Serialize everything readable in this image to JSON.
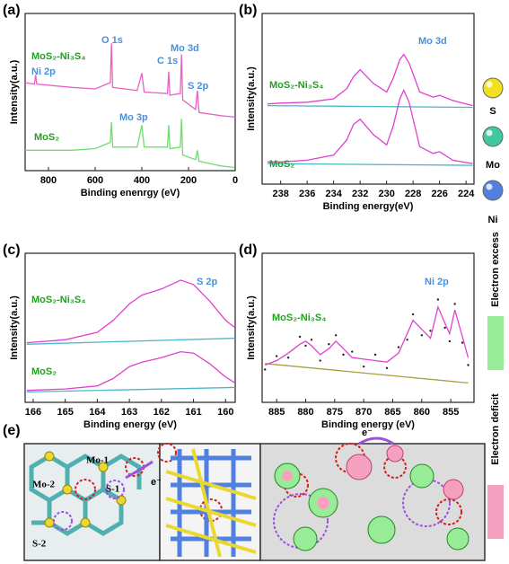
{
  "chart_data": [
    {
      "type": "line",
      "label": "(a)",
      "xlabel": "Binding enenrgy (eV)",
      "ylabel": "Intensity(a.u.)",
      "xlim": [
        900,
        0
      ],
      "xticks": [
        800,
        600,
        400,
        200,
        0
      ],
      "ylim": [
        0,
        10
      ],
      "annotations": [
        {
          "text": "MoS₂-Ni₃S₄",
          "color": "#22a022"
        },
        {
          "text": "Ni 2p",
          "color": "#4a90d9"
        },
        {
          "text": "O 1s",
          "color": "#4a90d9"
        },
        {
          "text": "C 1s",
          "color": "#4a90d9"
        },
        {
          "text": "Mo 3d",
          "color": "#4a90d9"
        },
        {
          "text": "S 2p",
          "color": "#4a90d9"
        },
        {
          "text": "Mo 3p",
          "color": "#4a90d9"
        },
        {
          "text": "MoS₂",
          "color": "#22a022"
        }
      ],
      "series": [
        {
          "color": "#e860c8",
          "x": [
            900,
            860,
            855,
            850,
            700,
            600,
            535,
            530,
            525,
            420,
            400,
            390,
            290,
            285,
            280,
            235,
            230,
            225,
            170,
            162,
            155,
            60,
            0
          ],
          "values": [
            5.6,
            5.5,
            6.1,
            5.5,
            5.3,
            5.2,
            5.6,
            8.1,
            5.3,
            5.1,
            6.2,
            5.0,
            4.9,
            6.3,
            4.8,
            4.9,
            7.4,
            4.5,
            3.9,
            5.1,
            3.7,
            3.5,
            3.4
          ]
        },
        {
          "color": "#70dc70",
          "x": [
            900,
            860,
            855,
            850,
            700,
            600,
            535,
            530,
            525,
            420,
            400,
            390,
            290,
            285,
            280,
            235,
            230,
            225,
            170,
            162,
            155,
            60,
            0
          ],
          "values": [
            1.3,
            1.3,
            1.3,
            1.3,
            1.3,
            1.4,
            1.8,
            3.1,
            1.5,
            1.5,
            2.9,
            1.5,
            1.5,
            2.9,
            1.4,
            1.5,
            3.3,
            1.0,
            0.7,
            1.3,
            0.6,
            0.3,
            0.2
          ]
        }
      ]
    },
    {
      "type": "line",
      "label": "(b)",
      "xlabel": "Binding energy(eV)",
      "ylabel": "Intensity(a.u.)",
      "xlim": [
        239.4,
        223.4
      ],
      "xticks": [
        238,
        236,
        234,
        232,
        230,
        228,
        226,
        224
      ],
      "ylim": [
        0,
        10
      ],
      "annotations": [
        {
          "text": "Mo 3d",
          "color": "#4a90d9"
        },
        {
          "text": "MoS₂-Ni₃S₄",
          "color": "#22a022"
        },
        {
          "text": "MoS₂",
          "color": "#22a022"
        }
      ],
      "series": [
        {
          "color": "#4ab8c8",
          "x": [
            239,
            223.5
          ],
          "values": [
            4.6,
            4.5
          ]
        },
        {
          "color": "#4ab8c8",
          "x": [
            239,
            223.5
          ],
          "values": [
            1.2,
            1.1
          ]
        },
        {
          "color": "#e040d0",
          "x": [
            239,
            238,
            236,
            234,
            233,
            232.5,
            232,
            231,
            230,
            229.5,
            229,
            228.7,
            228.3,
            227.5,
            226.5,
            226,
            225,
            223.5
          ],
          "values": [
            4.7,
            4.75,
            4.8,
            5.0,
            5.6,
            6.3,
            6.7,
            5.9,
            5.4,
            6.2,
            7.3,
            7.6,
            7.1,
            5.4,
            5.1,
            5.2,
            4.9,
            4.6
          ]
        },
        {
          "color": "#e040d0",
          "x": [
            239,
            238,
            236,
            234,
            233,
            232.5,
            232,
            231,
            230,
            229.5,
            229,
            228.7,
            228.3,
            227.5,
            226.5,
            226,
            225,
            223.5
          ],
          "values": [
            1.3,
            1.3,
            1.4,
            1.7,
            2.6,
            3.5,
            3.8,
            2.9,
            2.3,
            3.4,
            5.0,
            5.5,
            4.8,
            2.2,
            1.8,
            1.9,
            1.4,
            1.2
          ]
        }
      ]
    },
    {
      "type": "line",
      "label": "(c)",
      "xlabel": "Binding energy (eV)",
      "ylabel": "Intensity(a.u.)",
      "xlim": [
        166.25,
        159.7
      ],
      "xticks": [
        166,
        165,
        164,
        163,
        162,
        161,
        160
      ],
      "ylim": [
        0,
        10
      ],
      "annotations": [
        {
          "text": "S 2p",
          "color": "#4a90d9"
        },
        {
          "text": "MoS₂-Ni₃S₄",
          "color": "#22a022"
        },
        {
          "text": "MoS₂",
          "color": "#22a022"
        }
      ],
      "series": [
        {
          "color": "#4ab8c8",
          "x": [
            166.2,
            159.7
          ],
          "values": [
            3.9,
            4.3
          ]
        },
        {
          "color": "#4ab8c8",
          "x": [
            166.2,
            159.7
          ],
          "values": [
            0.7,
            1.0
          ]
        },
        {
          "color": "#e040d0",
          "x": [
            166.2,
            165,
            164,
            163.5,
            163,
            162.6,
            162,
            161.4,
            161,
            160.5,
            160,
            159.7
          ],
          "values": [
            4.0,
            4.2,
            4.7,
            5.5,
            6.6,
            7.2,
            7.6,
            8.2,
            7.9,
            6.8,
            5.5,
            5.0
          ]
        },
        {
          "color": "#e040d0",
          "x": [
            166.2,
            165,
            164,
            163.5,
            163,
            162.6,
            162,
            161.4,
            161,
            160.5,
            160,
            159.7
          ],
          "values": [
            0.8,
            0.9,
            1.1,
            1.6,
            2.4,
            2.7,
            3.0,
            3.4,
            3.3,
            2.6,
            1.7,
            1.3
          ]
        }
      ]
    },
    {
      "type": "line",
      "label": "(d)",
      "xlabel": "Binding energy (eV)",
      "ylabel": "Intensity(a.u.)",
      "xlim": [
        887.5,
        851
      ],
      "xticks": [
        885,
        880,
        875,
        870,
        865,
        860,
        855
      ],
      "ylim": [
        0,
        10
      ],
      "annotations": [
        {
          "text": "Ni 2p",
          "color": "#4a90d9"
        },
        {
          "text": "MoS₂-Ni₃S₄",
          "color": "#22a022"
        }
      ],
      "series": [
        {
          "color": "#a8a040",
          "x": [
            887,
            852
          ],
          "values": [
            2.6,
            1.3
          ]
        },
        {
          "color": "#222222",
          "marker": "dot",
          "x": [
            887,
            885,
            883,
            881,
            880,
            879,
            877.5,
            876,
            874.8,
            873.5,
            872,
            870,
            868,
            866,
            864,
            862.5,
            861.5,
            860,
            858.5,
            857.2,
            856,
            855.2,
            854.3,
            853,
            852
          ],
          "values": [
            2.2,
            3.1,
            3.0,
            4.4,
            3.8,
            4.2,
            2.8,
            3.9,
            4.5,
            3.2,
            3.4,
            2.4,
            3.2,
            2.3,
            3.7,
            4.2,
            5.9,
            4.5,
            4.8,
            6.9,
            5.0,
            4.1,
            6.6,
            4.0,
            2.5
          ]
        },
        {
          "color": "#e040d0",
          "x": [
            887,
            885,
            883,
            881,
            880,
            879,
            877.5,
            876,
            874.8,
            873.5,
            872,
            870,
            868,
            866,
            864,
            862.5,
            861.5,
            860,
            858.5,
            857.2,
            856,
            855.2,
            854.3,
            853,
            852
          ],
          "values": [
            2.5,
            2.8,
            3.3,
            3.9,
            4.1,
            3.8,
            3.2,
            3.6,
            4.1,
            3.6,
            3.0,
            2.9,
            2.8,
            2.7,
            3.3,
            4.6,
            5.5,
            4.9,
            4.3,
            6.4,
            5.3,
            4.6,
            6.2,
            4.4,
            3.0
          ]
        }
      ]
    }
  ],
  "atom_legend": [
    {
      "label": "S",
      "color": "#f0e020"
    },
    {
      "label": "Mo",
      "color": "#40c8a0"
    },
    {
      "label": "Ni",
      "color": "#5080e0"
    }
  ],
  "colorbar": [
    {
      "label": "Electron excess",
      "color": "#98ec98"
    },
    {
      "label": "Electron deficit",
      "color": "#f6a0c0"
    }
  ],
  "panel_e": {
    "label": "(e)",
    "atom_labels": [
      "Mo-1",
      "Mo-2",
      "S-1",
      "S-2"
    ],
    "electron_labels": [
      "e⁻",
      "e⁻"
    ]
  }
}
